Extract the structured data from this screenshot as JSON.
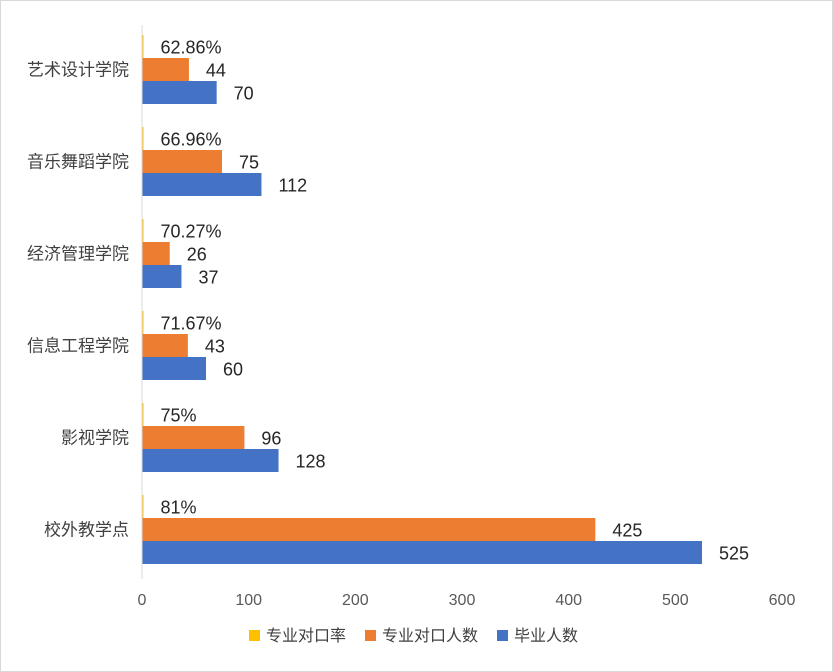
{
  "chart_data": {
    "type": "bar",
    "orientation": "horizontal",
    "title": "",
    "xlabel": "",
    "ylabel": "",
    "xlim": [
      0,
      600
    ],
    "x_ticks": [
      "0",
      "100",
      "200",
      "300",
      "400",
      "500",
      "600"
    ],
    "grid": false,
    "legend_position": "bottom",
    "categories": [
      "艺术设计学院",
      "音乐舞蹈学院",
      "经济管理学院",
      "信息工程学院",
      "影视学院",
      "校外教学点"
    ],
    "series": [
      {
        "name": "专业对口率",
        "color": "#FFC000",
        "values": [
          0.6286,
          0.6696,
          0.7027,
          0.7167,
          0.75,
          0.81
        ],
        "labels": [
          "62.86%",
          "66.96%",
          "70.27%",
          "71.67%",
          "75%",
          "81%"
        ]
      },
      {
        "name": "专业对口人数",
        "color": "#ED7D31",
        "values": [
          44,
          75,
          26,
          43,
          96,
          425
        ],
        "labels": [
          "44",
          "75",
          "26",
          "43",
          "96",
          "425"
        ]
      },
      {
        "name": "毕业人数",
        "color": "#4472C4",
        "values": [
          70,
          112,
          37,
          60,
          128,
          525
        ],
        "labels": [
          "70",
          "112",
          "37",
          "60",
          "128",
          "525"
        ]
      }
    ]
  }
}
